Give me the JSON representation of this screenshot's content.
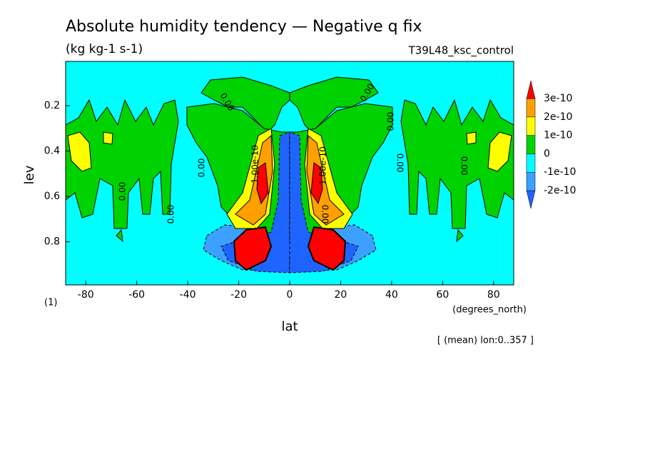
{
  "chart_data": {
    "type": "contour",
    "title": "Absolute humidity tendency — Negative q fix",
    "subtitle": "(kg kg-1 s-1)",
    "run_label": "T39L48_ksc_control",
    "x_label": "lat",
    "x_units": "(degrees_north)",
    "y_label": "lev",
    "y_units": "(1)",
    "footnote": "[ (mean) lon:0..357 ]",
    "xlim": [
      -87.9,
      87.9
    ],
    "ylim": [
      0.005,
      0.99
    ],
    "y_inverted": true,
    "xticks": [
      -80,
      -60,
      -40,
      -20,
      0,
      20,
      40,
      60,
      80
    ],
    "yticks": [
      0.2,
      0.4,
      0.6,
      0.8
    ],
    "levels": [
      {
        "value": -2e-10,
        "label": "-2e-10"
      },
      {
        "value": -1e-10,
        "label": "-1e-10"
      },
      {
        "value": 0,
        "label": "0"
      },
      {
        "value": 1e-10,
        "label": "1e-10"
      },
      {
        "value": 2e-10,
        "label": "2e-10"
      },
      {
        "value": 3e-10,
        "label": "3e-10"
      }
    ],
    "colors": [
      "#1e64ff",
      "#3ca0ff",
      "#00ffff",
      "#00d200",
      "#ffff00",
      "#ffa000",
      "#ff0000"
    ],
    "contour_labels": [
      "0.00",
      "0.00",
      "0.00",
      "0.00",
      "0.00",
      "0.00",
      "0.00",
      "0.00",
      "0.00",
      "1.00e-10",
      "1.00e-10"
    ]
  }
}
